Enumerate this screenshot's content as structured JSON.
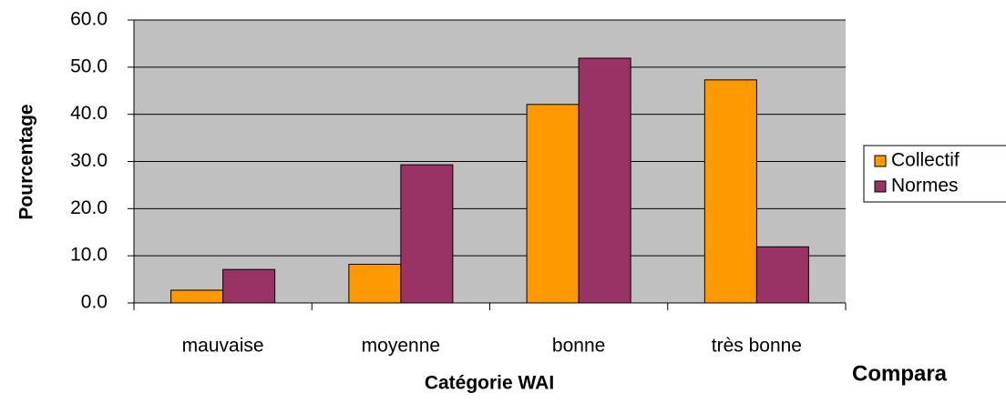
{
  "chart_data": {
    "type": "bar",
    "x_label": "Catégorie WAI",
    "y_label": "Pourcentage",
    "annotation": "Compara",
    "categories": [
      "mauvaise",
      "moyenne",
      "bonne",
      "très bonne"
    ],
    "series": [
      {
        "name": "Collectif",
        "color": "#ff9900",
        "values": [
          2.7,
          8.2,
          42.1,
          47.3
        ]
      },
      {
        "name": "Normes",
        "color": "#993366",
        "values": [
          7.1,
          29.3,
          51.9,
          11.9
        ]
      }
    ],
    "ylim": [
      0,
      60
    ],
    "yticks": [
      {
        "value": 0,
        "label": "0.0"
      },
      {
        "value": 10,
        "label": "10.0"
      },
      {
        "value": 20,
        "label": "20.0"
      },
      {
        "value": 30,
        "label": "30.0"
      },
      {
        "value": 40,
        "label": "40.0"
      },
      {
        "value": 50,
        "label": "50.0"
      },
      {
        "value": 60,
        "label": "60.0"
      }
    ],
    "grid": true,
    "legend": "right"
  }
}
